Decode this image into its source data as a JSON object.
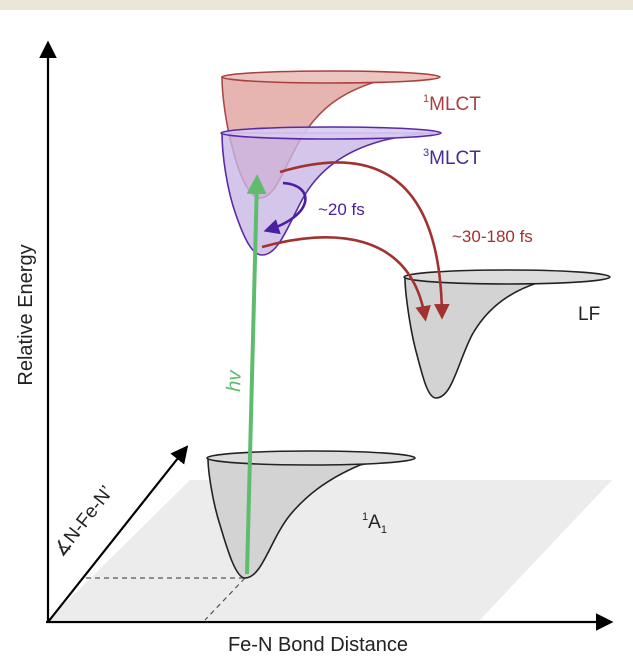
{
  "diagram": {
    "axes": {
      "y_label": "Relative Energy",
      "x_label": "Fe-N Bond Distance",
      "z_label": "∡N-Fe-N’"
    },
    "states": [
      {
        "id": "mlct1",
        "sup": "1",
        "main": "MLCT",
        "sub": "",
        "fill": "#e5b1ad",
        "stroke": "#a8403e",
        "label_color": "#a8403e"
      },
      {
        "id": "mlct3",
        "sup": "3",
        "main": "MLCT",
        "sub": "",
        "fill": "#cfc0e8",
        "stroke": "#5a2aa6",
        "label_color": "#4a2b8e"
      },
      {
        "id": "lf",
        "sup": "",
        "main": "LF",
        "sub": "",
        "fill": "#d3d3d3",
        "stroke": "#222222",
        "label_color": "#222222"
      },
      {
        "id": "a1",
        "sup": "1",
        "main": "A",
        "sub": "1",
        "fill": "#d3d3d3",
        "stroke": "#222222",
        "label_color": "#222222"
      }
    ],
    "transitions": {
      "excitation": {
        "label": "hv",
        "color": "#5dbd6d"
      },
      "isc": {
        "label": "~20 fs",
        "color": "#4a1fa0"
      },
      "relax": {
        "label": "~30-180 fs",
        "color": "#a0332f"
      }
    },
    "plane_color": "#ececec"
  }
}
